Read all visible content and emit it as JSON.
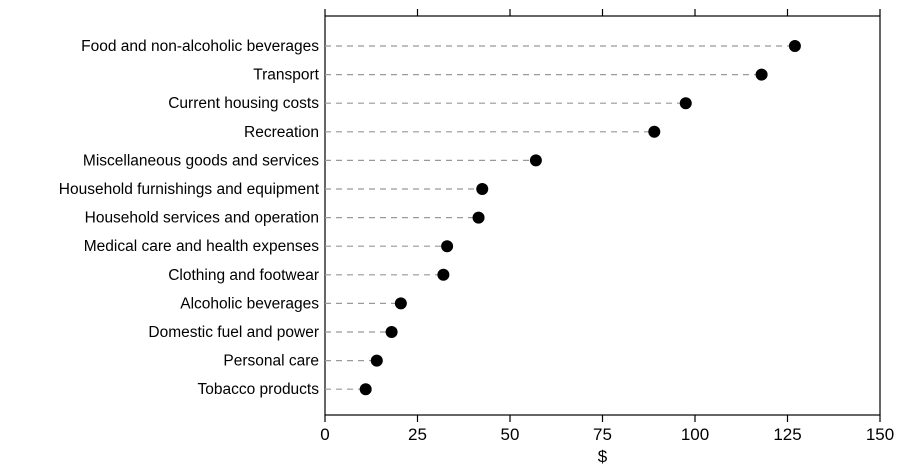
{
  "chart_data": {
    "type": "dot",
    "categories": [
      "Food and non-alcoholic beverages",
      "Transport",
      "Current housing costs",
      "Recreation",
      "Miscellaneous goods and services",
      "Household furnishings and equipment",
      "Household services and operation",
      "Medical care and health expenses",
      "Clothing and footwear",
      "Alcoholic beverages",
      "Domestic fuel and power",
      "Personal care",
      "Tobacco products"
    ],
    "values": [
      127,
      118,
      97.5,
      89,
      57,
      42.5,
      41.5,
      33,
      32,
      20.5,
      18,
      14,
      11
    ],
    "xlabel": "$",
    "ylabel": "",
    "xlim": [
      0,
      150
    ],
    "xticks": [
      "0",
      "25",
      "50",
      "75",
      "100",
      "125",
      "150"
    ],
    "grid": false,
    "legend": "none",
    "colors": {
      "marker": "#000000",
      "leader_line": "#999999",
      "axis": "#000000"
    }
  }
}
